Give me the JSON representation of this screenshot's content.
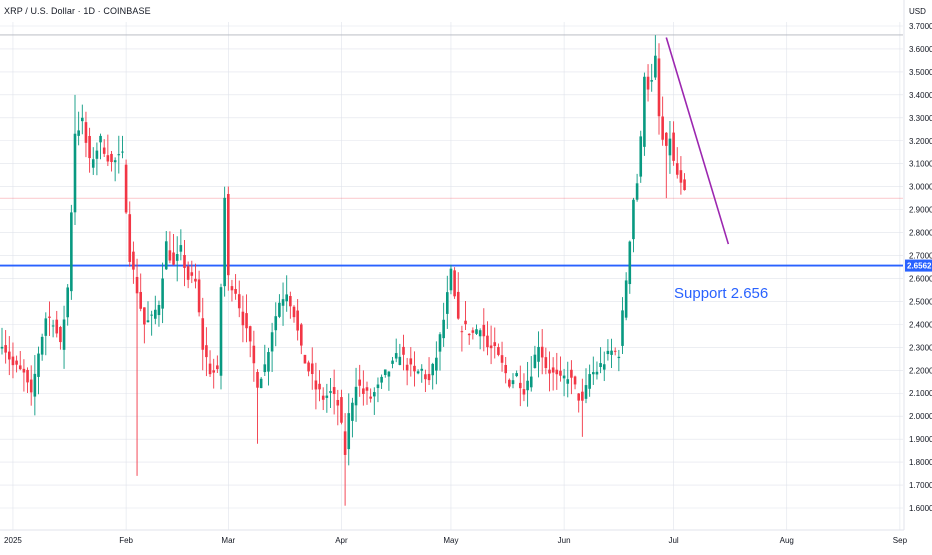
{
  "chart_data": {
    "type": "candlestick",
    "title": "XRP / U.S. Dollar · 1D · COINBASE",
    "currency": "USD",
    "ylim": [
      1.6,
      3.75
    ],
    "y_ticks": [
      "3.7000",
      "3.6000",
      "3.5000",
      "3.4000",
      "3.3000",
      "3.2000",
      "3.1000",
      "3.0000",
      "2.9000",
      "2.8000",
      "2.7000",
      "2.6000",
      "2.5000",
      "2.4000",
      "2.3000",
      "2.2000",
      "2.1000",
      "2.0000",
      "1.9000",
      "1.8000",
      "1.7000",
      "1.6000"
    ],
    "x_ticks": [
      {
        "label": "2025",
        "index": 3
      },
      {
        "label": "Feb",
        "index": 34
      },
      {
        "label": "Mar",
        "index": 62
      },
      {
        "label": "Apr",
        "index": 93
      },
      {
        "label": "May",
        "index": 123
      },
      {
        "label": "Jun",
        "index": 154
      },
      {
        "label": "Jul",
        "index": 184
      },
      {
        "label": "Aug",
        "index": 215
      },
      {
        "label": "Sep",
        "index": 246
      }
    ],
    "series": [
      {
        "ohlc_anchors": [
          [
            0,
            2.33
          ],
          [
            3,
            2.22
          ],
          [
            6,
            2.18
          ],
          [
            8,
            2.08
          ],
          [
            10,
            2.28
          ],
          [
            12,
            2.43
          ],
          [
            14,
            2.42
          ],
          [
            16,
            2.3
          ],
          [
            18,
            2.56
          ],
          [
            20,
            3.24
          ],
          [
            22,
            3.28
          ],
          [
            24,
            3.1
          ],
          [
            27,
            3.2
          ],
          [
            30,
            3.1
          ],
          [
            33,
            3.13
          ],
          [
            35,
            2.7
          ],
          [
            37,
            2.55
          ],
          [
            39,
            2.4
          ],
          [
            41,
            2.42
          ],
          [
            43,
            2.5
          ],
          [
            45,
            2.75
          ],
          [
            47,
            2.65
          ],
          [
            49,
            2.72
          ],
          [
            51,
            2.6
          ],
          [
            53,
            2.58
          ],
          [
            55,
            2.3
          ],
          [
            57,
            2.2
          ],
          [
            59,
            2.18
          ],
          [
            61,
            2.95
          ],
          [
            62,
            2.6
          ],
          [
            64,
            2.55
          ],
          [
            66,
            2.42
          ],
          [
            68,
            2.3
          ],
          [
            70,
            2.15
          ],
          [
            72,
            2.22
          ],
          [
            74,
            2.38
          ],
          [
            76,
            2.5
          ],
          [
            78,
            2.55
          ],
          [
            80,
            2.45
          ],
          [
            82,
            2.28
          ],
          [
            84,
            2.2
          ],
          [
            86,
            2.12
          ],
          [
            88,
            2.08
          ],
          [
            90,
            2.1
          ],
          [
            92,
            2.05
          ],
          [
            94,
            1.84
          ],
          [
            95,
            2.0
          ],
          [
            97,
            2.15
          ],
          [
            99,
            2.1
          ],
          [
            101,
            2.08
          ],
          [
            103,
            2.12
          ],
          [
            105,
            2.18
          ],
          [
            107,
            2.22
          ],
          [
            109,
            2.28
          ],
          [
            111,
            2.22
          ],
          [
            113,
            2.18
          ],
          [
            115,
            2.2
          ],
          [
            117,
            2.15
          ],
          [
            119,
            2.26
          ],
          [
            121,
            2.42
          ],
          [
            123,
            2.62
          ],
          [
            125,
            2.4
          ],
          [
            127,
            2.38
          ],
          [
            129,
            2.36
          ],
          [
            131,
            2.4
          ],
          [
            133,
            2.3
          ],
          [
            135,
            2.28
          ],
          [
            137,
            2.22
          ],
          [
            139,
            2.15
          ],
          [
            141,
            2.18
          ],
          [
            143,
            2.12
          ],
          [
            145,
            2.2
          ],
          [
            147,
            2.32
          ],
          [
            149,
            2.22
          ],
          [
            151,
            2.18
          ],
          [
            153,
            2.15
          ],
          [
            155,
            2.18
          ],
          [
            157,
            2.12
          ],
          [
            159,
            2.05
          ],
          [
            161,
            2.18
          ],
          [
            163,
            2.2
          ],
          [
            165,
            2.24
          ],
          [
            167,
            2.28
          ],
          [
            169,
            2.28
          ],
          [
            171,
            2.6
          ],
          [
            172,
            2.78
          ],
          [
            173,
            2.95
          ],
          [
            174,
            3.02
          ],
          [
            175,
            3.2
          ],
          [
            176,
            3.5
          ],
          [
            177,
            3.44
          ],
          [
            178,
            3.45
          ],
          [
            179,
            3.55
          ],
          [
            180,
            3.3
          ],
          [
            181,
            3.2
          ],
          [
            182,
            3.15
          ],
          [
            183,
            3.22
          ],
          [
            184,
            3.1
          ],
          [
            185,
            3.05
          ],
          [
            186,
            3.0
          ],
          [
            187,
            2.96
          ]
        ]
      }
    ],
    "support": {
      "value": 2.6562,
      "label": "Support 2.656",
      "price_tag": "2.6562"
    },
    "resistance_line": {
      "value": 3.661
    },
    "last_price": {
      "value": 2.95
    },
    "trendline": {
      "from": [
        182,
        3.65
      ],
      "to": [
        199,
        2.75
      ]
    },
    "grid": true,
    "colors": {
      "up": "#089981",
      "down": "#f23645",
      "support": "#2962ff",
      "support_text": "#2962ff",
      "trendline": "#9c27b0",
      "grid": "#e0e3eb",
      "axis_text": "#131722",
      "last_price_line": "#f23645",
      "resistance": "#b2b5be"
    }
  }
}
